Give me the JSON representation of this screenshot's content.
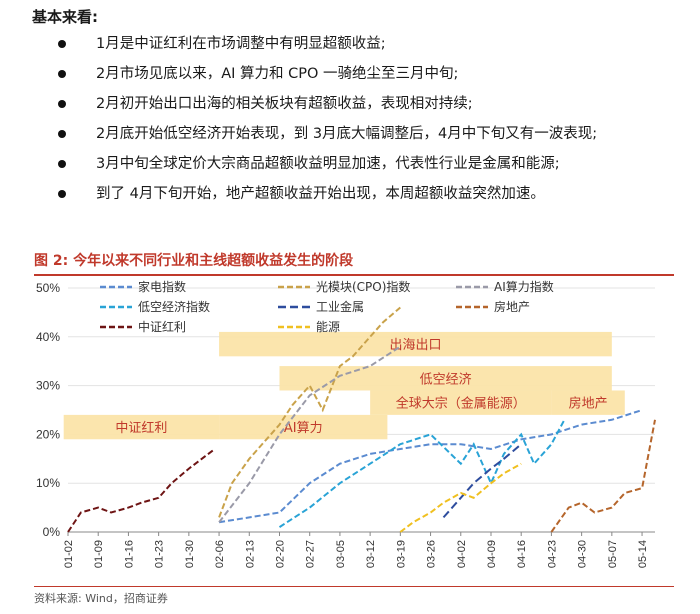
{
  "summary": {
    "title": "基本来看:",
    "bullets": [
      "1月是中证红利在市场调整中有明显超额收益;",
      "2月市场见底以来，AI 算力和 CPO 一骑绝尘至三月中旬;",
      "2月初开始出口出海的相关板块有超额收益，表现相对持续;",
      "2月底开始低空经济开始表现，到 3月底大幅调整后，4月中下旬又有一波表现;",
      "3月中旬全球定价大宗商品超额收益明显加速，代表性行业是金属和能源;",
      "到了 4月下旬开始，地产超额收益开始出现，本周超额收益突然加速。"
    ]
  },
  "figure": {
    "title": "图 2:  今年以来不同行业和主线超额收益发生的阶段",
    "source": "资料来源: Wind，招商证券"
  },
  "chart_data": {
    "type": "line",
    "ylim": [
      0,
      50
    ],
    "yticks": [
      "0%",
      "10%",
      "20%",
      "30%",
      "40%",
      "50%"
    ],
    "ytick_values": [
      0,
      10,
      20,
      30,
      40,
      50
    ],
    "x_start": "01-02",
    "x_end": "05-17",
    "xtick_labels": [
      "01-02",
      "01-09",
      "01-16",
      "01-23",
      "01-30",
      "02-06",
      "02-13",
      "02-20",
      "02-27",
      "03-05",
      "03-12",
      "03-19",
      "03-26",
      "04-02",
      "04-09",
      "04-16",
      "04-23",
      "04-30",
      "05-07",
      "05-14"
    ],
    "grid": true,
    "legend_position": "top",
    "series": [
      {
        "name": "家电指数",
        "color": "#5b8bd0",
        "dash": "6,3",
        "points": [
          [
            "02-06",
            2
          ],
          [
            "02-13",
            3
          ],
          [
            "02-20",
            4
          ],
          [
            "02-27",
            10
          ],
          [
            "03-05",
            14
          ],
          [
            "03-12",
            16
          ],
          [
            "03-19",
            17
          ],
          [
            "03-26",
            18
          ],
          [
            "04-02",
            18
          ],
          [
            "04-09",
            17
          ],
          [
            "04-16",
            19
          ],
          [
            "04-23",
            20
          ],
          [
            "04-30",
            22
          ],
          [
            "05-07",
            23
          ],
          [
            "05-14",
            25
          ]
        ]
      },
      {
        "name": "光模块(CPO)指数",
        "color": "#c9a24a",
        "dash": "6,3",
        "points": [
          [
            "02-06",
            3
          ],
          [
            "02-09",
            10
          ],
          [
            "02-13",
            15
          ],
          [
            "02-17",
            19
          ],
          [
            "02-20",
            22
          ],
          [
            "02-23",
            26
          ],
          [
            "02-27",
            30
          ],
          [
            "03-01",
            25
          ],
          [
            "03-05",
            34
          ],
          [
            "03-08",
            36
          ],
          [
            "03-12",
            40
          ],
          [
            "03-15",
            43
          ],
          [
            "03-19",
            46
          ]
        ]
      },
      {
        "name": "AI算力指数",
        "color": "#9a9aa8",
        "dash": "6,3",
        "points": [
          [
            "02-06",
            2
          ],
          [
            "02-13",
            10
          ],
          [
            "02-20",
            20
          ],
          [
            "02-27",
            28
          ],
          [
            "03-05",
            32
          ],
          [
            "03-12",
            34
          ],
          [
            "03-19",
            38
          ]
        ]
      },
      {
        "name": "低空经济指数",
        "color": "#29a3d6",
        "dash": "6,3",
        "points": [
          [
            "02-20",
            1
          ],
          [
            "02-27",
            5
          ],
          [
            "03-05",
            10
          ],
          [
            "03-12",
            14
          ],
          [
            "03-19",
            18
          ],
          [
            "03-26",
            20
          ],
          [
            "04-02",
            14
          ],
          [
            "04-05",
            18
          ],
          [
            "04-09",
            10
          ],
          [
            "04-12",
            16
          ],
          [
            "04-16",
            20
          ],
          [
            "04-19",
            14
          ],
          [
            "04-23",
            18
          ],
          [
            "04-26",
            23
          ]
        ]
      },
      {
        "name": "工业金属",
        "color": "#2e4d9e",
        "dash": "8,4",
        "points": [
          [
            "03-29",
            3
          ],
          [
            "04-02",
            7
          ],
          [
            "04-05",
            10
          ],
          [
            "04-09",
            13
          ],
          [
            "04-12",
            15
          ],
          [
            "04-16",
            18
          ]
        ]
      },
      {
        "name": "房地产",
        "color": "#b5652b",
        "dash": "6,3",
        "points": [
          [
            "04-23",
            0
          ],
          [
            "04-27",
            5
          ],
          [
            "04-30",
            6
          ],
          [
            "05-03",
            4
          ],
          [
            "05-07",
            5
          ],
          [
            "05-10",
            8
          ],
          [
            "05-14",
            9
          ],
          [
            "05-17",
            23
          ]
        ]
      },
      {
        "name": "中证红利",
        "color": "#6e1414",
        "dash": "6,3",
        "points": [
          [
            "01-02",
            0
          ],
          [
            "01-05",
            4
          ],
          [
            "01-09",
            5
          ],
          [
            "01-12",
            4
          ],
          [
            "01-16",
            5
          ],
          [
            "01-19",
            6
          ],
          [
            "01-23",
            7
          ],
          [
            "01-26",
            10
          ],
          [
            "01-30",
            13
          ],
          [
            "02-02",
            15
          ],
          [
            "02-05",
            17
          ]
        ]
      },
      {
        "name": "能源",
        "color": "#f0c020",
        "dash": "6,3",
        "points": [
          [
            "03-19",
            0
          ],
          [
            "03-22",
            2
          ],
          [
            "03-26",
            4
          ],
          [
            "03-29",
            6
          ],
          [
            "04-02",
            8
          ],
          [
            "04-05",
            7
          ],
          [
            "04-09",
            10
          ],
          [
            "04-12",
            12
          ],
          [
            "04-16",
            14
          ]
        ]
      }
    ],
    "annotations": [
      {
        "label": "出海出口",
        "start": "02-06",
        "end": "05-07",
        "y_top": 41,
        "y_bottom": 36
      },
      {
        "label": "低空经济",
        "start": "02-20",
        "end": "05-07",
        "y_top": 34,
        "y_bottom": 29
      },
      {
        "label": "全球大宗（金属能源）",
        "start": "03-12",
        "end": "04-23",
        "y_top": 29,
        "y_bottom": 24
      },
      {
        "label": "房地产",
        "start": "04-23",
        "end": "05-10",
        "y_top": 29,
        "y_bottom": 24
      },
      {
        "label": "中证红利",
        "start": "01-01",
        "end": "02-06",
        "y_top": 24,
        "y_bottom": 19
      },
      {
        "label": "AI算力",
        "start": "02-06",
        "end": "03-16",
        "y_top": 24,
        "y_bottom": 19
      }
    ]
  }
}
